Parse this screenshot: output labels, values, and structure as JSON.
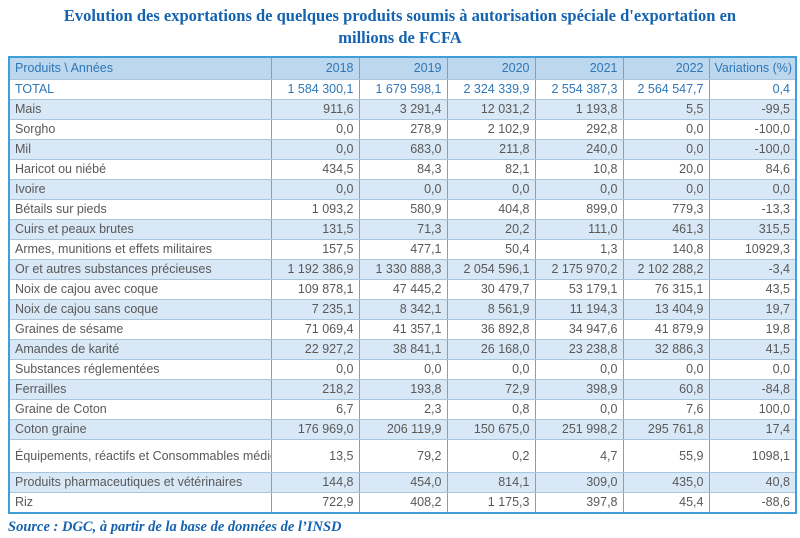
{
  "title": "Evolution des exportations de quelques produits soumis à autorisation spéciale d'exportation en millions de FCFA",
  "source": "Source : DGC, à partir de la base de données de l’INSD",
  "colors": {
    "title_blue": "#1563ae",
    "header_bg": "#bdd7ee",
    "header_text": "#2e77b8",
    "band_bg": "#d8e8f6",
    "data_text": "#595959",
    "border_blue": "#3fa0d8"
  },
  "table": {
    "columns": [
      "Produits \\ Années",
      "2018",
      "2019",
      "2020",
      "2021",
      "2022",
      "Variations (%)"
    ],
    "total_row": {
      "label": "TOTAL",
      "values": [
        "1 584 300,1",
        "1 679 598,1",
        "2 324 339,9",
        "2 554 387,3",
        "2 564 547,7",
        "0,4"
      ]
    },
    "rows": [
      {
        "label": "Mais",
        "values": [
          "911,6",
          "3 291,4",
          "12 031,2",
          "1 193,8",
          "5,5",
          "-99,5"
        ]
      },
      {
        "label": "Sorgho",
        "values": [
          "0,0",
          "278,9",
          "2 102,9",
          "292,8",
          "0,0",
          "-100,0"
        ]
      },
      {
        "label": "Mil",
        "values": [
          "0,0",
          "683,0",
          "211,8",
          "240,0",
          "0,0",
          "-100,0"
        ]
      },
      {
        "label": "Haricot ou niébé",
        "values": [
          "434,5",
          "84,3",
          "82,1",
          "10,8",
          "20,0",
          "84,6"
        ]
      },
      {
        "label": "Ivoire",
        "values": [
          "0,0",
          "0,0",
          "0,0",
          "0,0",
          "0,0",
          "0,0"
        ]
      },
      {
        "label": "Bétails sur pieds",
        "values": [
          "1 093,2",
          "580,9",
          "404,8",
          "899,0",
          "779,3",
          "-13,3"
        ]
      },
      {
        "label": "Cuirs et peaux brutes",
        "values": [
          "131,5",
          "71,3",
          "20,2",
          "111,0",
          "461,3",
          "315,5"
        ]
      },
      {
        "label": "Armes, munitions et effets militaires",
        "values": [
          "157,5",
          "477,1",
          "50,4",
          "1,3",
          "140,8",
          "10929,3"
        ]
      },
      {
        "label": "Or et autres substances précieuses",
        "values": [
          "1 192 386,9",
          "1 330 888,3",
          "2 054 596,1",
          "2 175 970,2",
          "2 102 288,2",
          "-3,4"
        ]
      },
      {
        "label": "Noix de cajou avec coque",
        "values": [
          "109 878,1",
          "47 445,2",
          "30 479,7",
          "53 179,1",
          "76 315,1",
          "43,5"
        ]
      },
      {
        "label": "Noix de cajou sans coque",
        "values": [
          "7 235,1",
          "8 342,1",
          "8 561,9",
          "11 194,3",
          "13 404,9",
          "19,7"
        ]
      },
      {
        "label": "Graines de sésame",
        "values": [
          "71 069,4",
          "41 357,1",
          "36 892,8",
          "34 947,6",
          "41 879,9",
          "19,8"
        ]
      },
      {
        "label": "Amandes de karité",
        "values": [
          "22 927,2",
          "38 841,1",
          "26 168,0",
          "23 238,8",
          "32 886,3",
          "41,5"
        ]
      },
      {
        "label": "Substances réglementées",
        "values": [
          "0,0",
          "0,0",
          "0,0",
          "0,0",
          "0,0",
          "0,0"
        ]
      },
      {
        "label": "Ferrailles",
        "values": [
          "218,2",
          "193,8",
          "72,9",
          "398,9",
          "60,8",
          "-84,8"
        ]
      },
      {
        "label": "Graine de Coton",
        "values": [
          "6,7",
          "2,3",
          "0,8",
          "0,0",
          "7,6",
          "100,0"
        ]
      },
      {
        "label": "Coton graine",
        "values": [
          "176 969,0",
          "206 119,9",
          "150 675,0",
          "251 998,2",
          "295 761,8",
          "17,4"
        ]
      },
      {
        "label": "Équipements, réactifs et\nConsommables médicaux",
        "values": [
          "13,5",
          "79,2",
          "0,2",
          "4,7",
          "55,9",
          "1098,1"
        ],
        "double": true
      },
      {
        "label": "Produits pharmaceutiques et vétérinaires",
        "values": [
          "144,8",
          "454,0",
          "814,1",
          "309,0",
          "435,0",
          "40,8"
        ]
      },
      {
        "label": "Riz",
        "values": [
          "722,9",
          "408,2",
          "1 175,3",
          "397,8",
          "45,4",
          "-88,6"
        ]
      }
    ]
  }
}
